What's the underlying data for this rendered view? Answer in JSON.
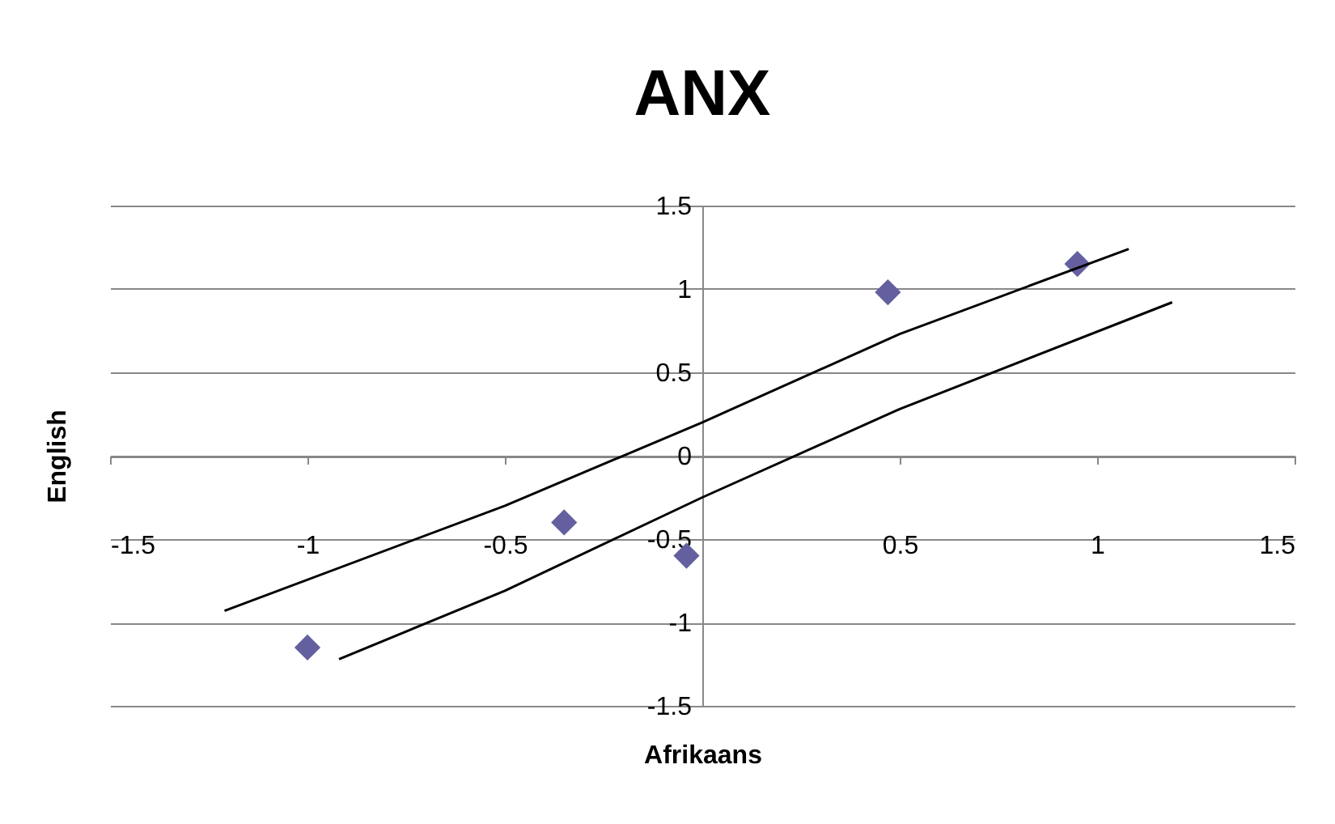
{
  "chart_data": {
    "type": "scatter",
    "title": "ANX",
    "xlabel": "Afrikaans",
    "ylabel": "English",
    "xlim": [
      -1.5,
      1.5
    ],
    "ylim": [
      -1.5,
      1.5
    ],
    "xticks": [
      -1.5,
      -1,
      -0.5,
      {
        "value": 0,
        "label": null
      },
      0.5,
      1,
      1.5
    ],
    "yticks": [
      -1.5,
      -1,
      -0.5,
      0,
      0.5,
      1,
      1.5
    ],
    "grid": "y",
    "marker": "diamond",
    "series": [
      {
        "color": "#64609f",
        "x": [
          -1.0,
          -0.35,
          -0.04,
          0.47,
          0.95
        ],
        "values": [
          -1.15,
          -0.4,
          -0.6,
          0.98,
          1.15
        ]
      },
      {
        "type": "line",
        "color": "#000000",
        "line_style": "solid",
        "marker": "none",
        "x": [
          -1.21,
          -0.5,
          0,
          0.5,
          1.08
        ],
        "values": [
          -0.93,
          -0.3,
          0.2,
          0.73,
          1.24
        ]
      },
      {
        "type": "line",
        "color": "#000000",
        "line_style": "solid",
        "marker": "none",
        "x": [
          -0.92,
          -0.5,
          0,
          0.5,
          1.19
        ],
        "values": [
          -1.22,
          -0.81,
          -0.25,
          0.28,
          0.92
        ]
      }
    ]
  }
}
